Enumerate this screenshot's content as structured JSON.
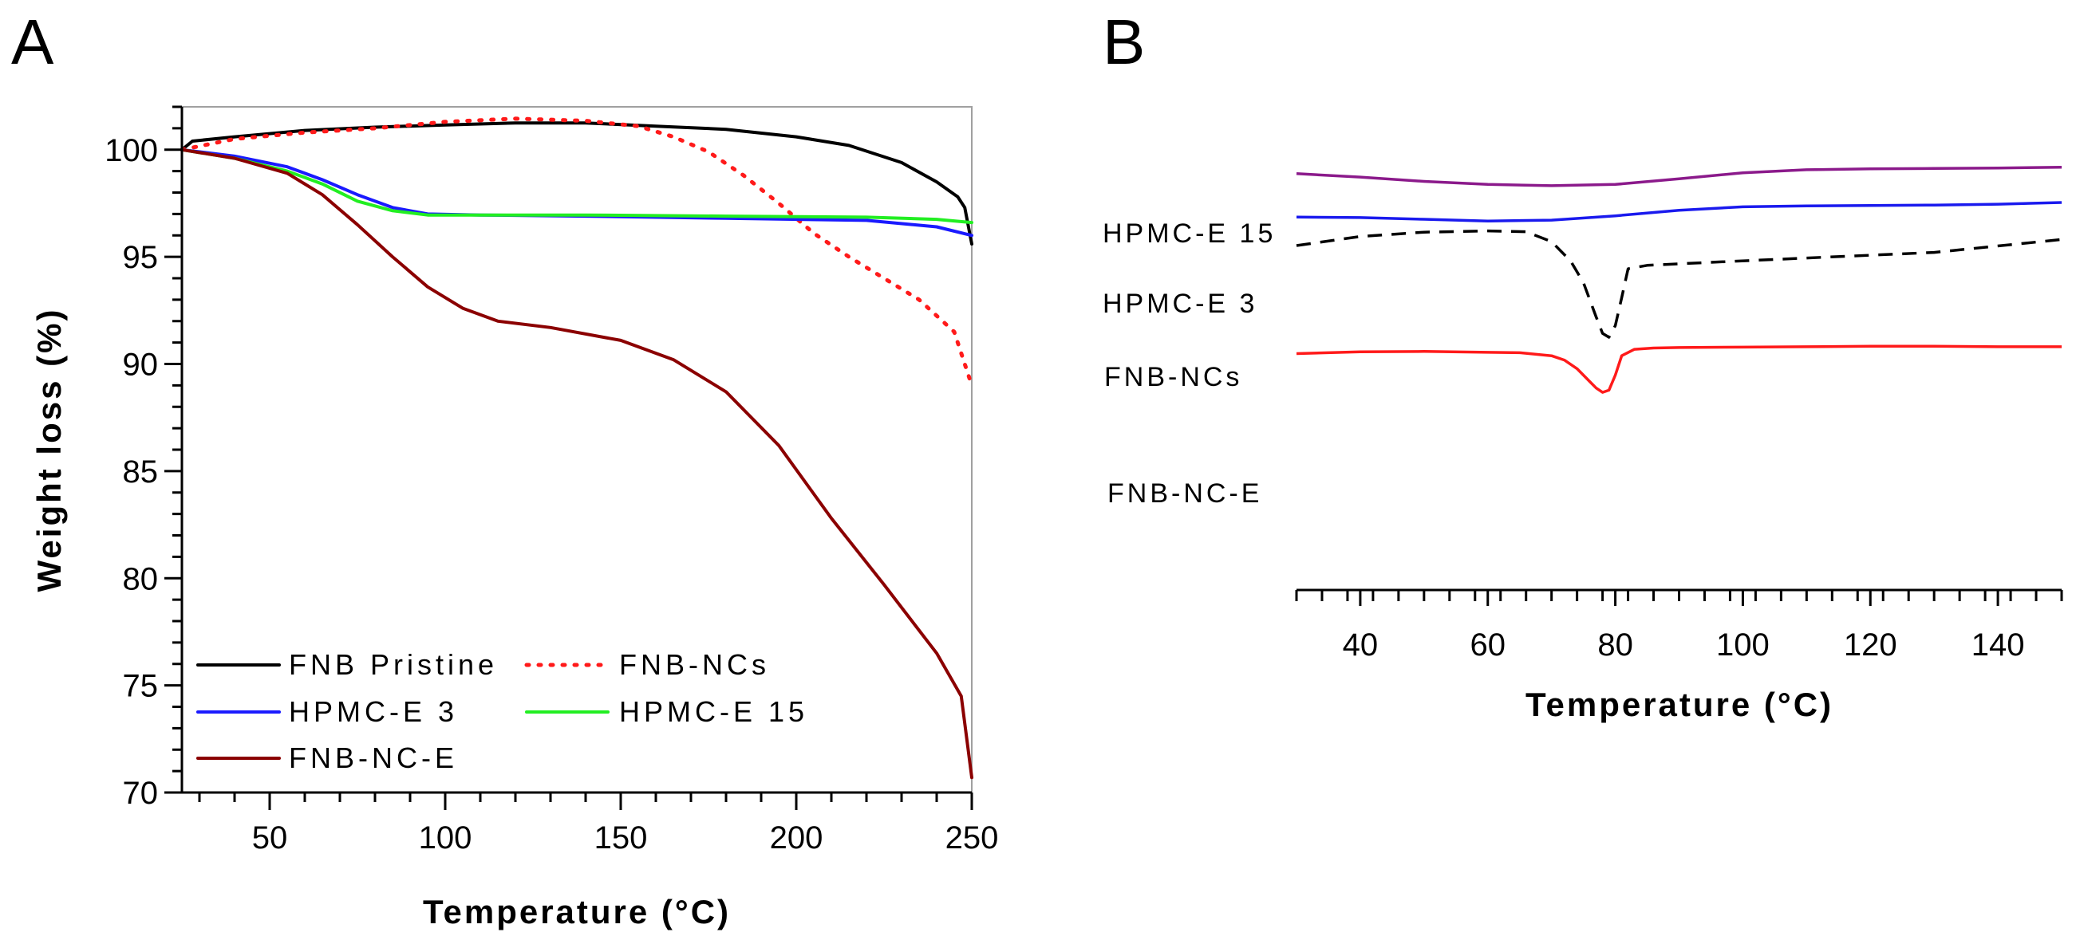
{
  "panels": {
    "a_letter": "A",
    "b_letter": "B"
  },
  "chart_data": [
    {
      "id": "A",
      "type": "line",
      "title": "",
      "xlabel": "Temperature (°C)",
      "ylabel": "Weight loss (%)",
      "xlim": [
        25,
        250
      ],
      "ylim": [
        70,
        102
      ],
      "xticks": [
        50,
        100,
        150,
        200,
        250
      ],
      "yticks": [
        70,
        75,
        80,
        85,
        90,
        95,
        100
      ],
      "grid": false,
      "legend_position": "bottom-left",
      "series": [
        {
          "name": "FNB Pristine",
          "color": "#000000",
          "style": "solid",
          "x": [
            25,
            28,
            40,
            60,
            80,
            100,
            120,
            140,
            160,
            180,
            200,
            215,
            230,
            240,
            246,
            248,
            250
          ],
          "y": [
            100,
            100.4,
            100.6,
            100.9,
            101.05,
            101.15,
            101.25,
            101.25,
            101.1,
            100.95,
            100.6,
            100.2,
            99.4,
            98.5,
            97.8,
            97.3,
            95.6
          ]
        },
        {
          "name": "FNB-NCs",
          "color": "#ff1a1a",
          "style": "dotted",
          "x": [
            25,
            40,
            60,
            80,
            100,
            120,
            140,
            155,
            165,
            175,
            185,
            195,
            205,
            215,
            225,
            235,
            245,
            250
          ],
          "y": [
            100,
            100.5,
            100.8,
            101.0,
            101.3,
            101.45,
            101.35,
            101.1,
            100.6,
            99.9,
            98.8,
            97.5,
            96.1,
            95.0,
            94.0,
            93.0,
            91.5,
            89.0
          ]
        },
        {
          "name": "HPMC-E 3",
          "color": "#1a1aff",
          "style": "solid",
          "x": [
            25,
            40,
            55,
            65,
            75,
            85,
            95,
            110,
            140,
            180,
            220,
            240,
            250
          ],
          "y": [
            100,
            99.7,
            99.2,
            98.6,
            97.9,
            97.3,
            97.0,
            96.95,
            96.9,
            96.8,
            96.7,
            96.4,
            96.0
          ]
        },
        {
          "name": "HPMC-E 15",
          "color": "#22ee22",
          "style": "solid",
          "x": [
            25,
            40,
            55,
            65,
            75,
            85,
            95,
            110,
            140,
            180,
            220,
            240,
            250
          ],
          "y": [
            100,
            99.6,
            99.0,
            98.4,
            97.6,
            97.15,
            96.95,
            96.95,
            96.95,
            96.9,
            96.85,
            96.75,
            96.6
          ]
        },
        {
          "name": "FNB-NC-E",
          "color": "#8b0000",
          "style": "solid",
          "x": [
            25,
            40,
            55,
            65,
            75,
            85,
            95,
            105,
            115,
            130,
            150,
            165,
            180,
            195,
            210,
            225,
            240,
            247,
            250
          ],
          "y": [
            100,
            99.6,
            98.9,
            97.9,
            96.5,
            95.0,
            93.6,
            92.6,
            92.0,
            91.7,
            91.1,
            90.2,
            88.7,
            86.2,
            82.8,
            79.7,
            76.5,
            74.5,
            70.7
          ]
        }
      ]
    },
    {
      "id": "B",
      "type": "line",
      "title": "",
      "xlabel": "Temperature (°C)",
      "ylabel": "",
      "xlim": [
        30,
        150
      ],
      "ylim": [
        0,
        100
      ],
      "xticks": [
        40,
        60,
        80,
        100,
        120,
        140
      ],
      "yticks": [],
      "grid": false,
      "legend_position": "inline-left",
      "series": [
        {
          "name": "HPMC-E 15",
          "color": "#8b1a8b",
          "style": "solid",
          "x": [
            30,
            40,
            50,
            60,
            70,
            80,
            90,
            100,
            110,
            120,
            130,
            140,
            150
          ],
          "y": [
            89.3,
            88.5,
            87.5,
            86.8,
            86.5,
            86.8,
            88.1,
            89.5,
            90.2,
            90.4,
            90.5,
            90.6,
            90.8
          ]
        },
        {
          "name": "HPMC-E 3",
          "color": "#1a1aee",
          "style": "solid",
          "x": [
            30,
            40,
            50,
            60,
            70,
            80,
            90,
            100,
            110,
            120,
            130,
            140,
            150
          ],
          "y": [
            79.2,
            79.1,
            78.7,
            78.3,
            78.5,
            79.5,
            80.8,
            81.6,
            81.8,
            81.9,
            82.0,
            82.2,
            82.6
          ]
        },
        {
          "name": "FNB-NCs",
          "color": "#000000",
          "style": "dashed",
          "x": [
            30,
            40,
            50,
            60,
            66,
            70,
            73,
            75,
            77,
            78,
            79,
            80,
            81,
            82,
            85,
            95,
            110,
            130,
            150
          ],
          "y": [
            72.6,
            74.7,
            75.7,
            76.0,
            75.8,
            73.5,
            69.0,
            64.0,
            56.0,
            52.2,
            51.3,
            54.0,
            60.5,
            67.2,
            68.0,
            68.7,
            69.7,
            71.0,
            74.0
          ]
        },
        {
          "name": "FNB-NC-E",
          "color": "#ff1a1a",
          "style": "solid",
          "x": [
            30,
            40,
            50,
            60,
            65,
            70,
            72,
            74,
            76,
            77,
            78,
            79,
            80,
            81,
            83,
            86,
            90,
            100,
            110,
            120,
            130,
            140,
            150
          ],
          "y": [
            47.5,
            47.9,
            48.0,
            47.8,
            47.7,
            47.0,
            46.0,
            44.0,
            41.0,
            39.5,
            38.5,
            39.0,
            42.5,
            47.0,
            48.5,
            48.8,
            48.9,
            49.0,
            49.1,
            49.2,
            49.2,
            49.1,
            49.1
          ]
        }
      ]
    }
  ]
}
